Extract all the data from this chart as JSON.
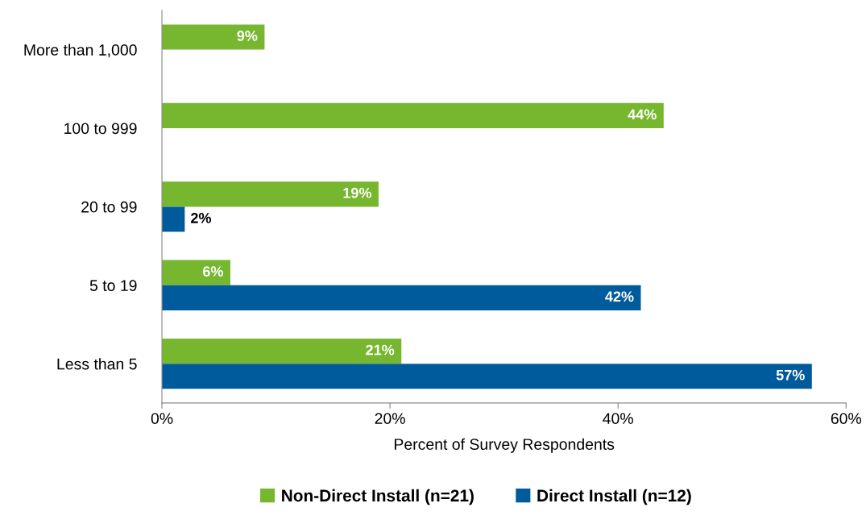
{
  "chart_data": {
    "type": "bar",
    "orientation": "horizontal",
    "categories": [
      "More than 1,000",
      "100 to 999",
      "20 to 99",
      "5 to 19",
      "Less than 5"
    ],
    "series": [
      {
        "name": "Non-Direct Install (n=21)",
        "color": "#77b72f",
        "values": [
          9,
          44,
          19,
          6,
          21
        ],
        "value_labels": [
          "9%",
          "44%",
          "19%",
          "6%",
          "21%"
        ]
      },
      {
        "name": "Direct Install (n=12)",
        "color": "#005b9d",
        "values": [
          null,
          null,
          2,
          42,
          57
        ],
        "value_labels": [
          null,
          null,
          "2%",
          "42%",
          "57%"
        ]
      }
    ],
    "xlim": [
      0,
      60
    ],
    "xticks": [
      {
        "value": 0,
        "label": "0%"
      },
      {
        "value": 20,
        "label": "20%"
      },
      {
        "value": 40,
        "label": "40%"
      },
      {
        "value": 60,
        "label": "60%"
      }
    ],
    "xlabel": "Percent of Survey Respondents",
    "legend": "bottom",
    "grid": false
  }
}
